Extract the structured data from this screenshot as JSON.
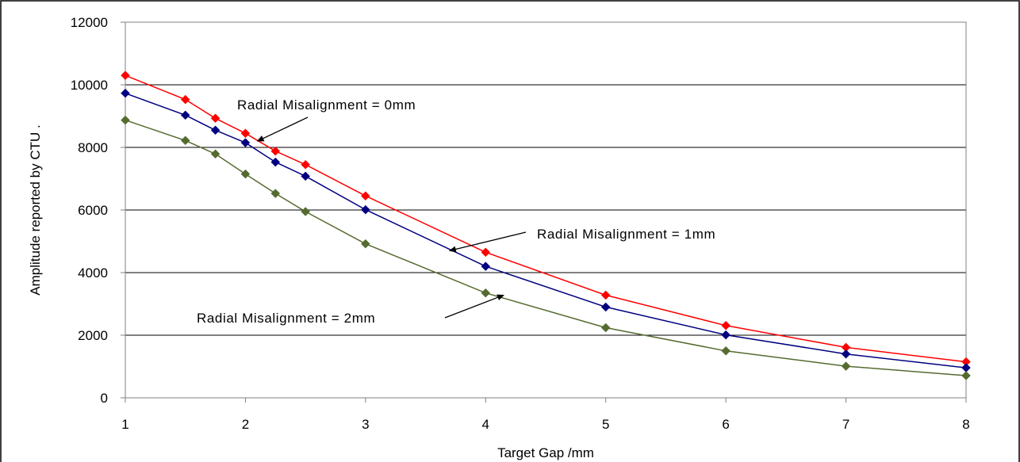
{
  "chart_data": {
    "type": "line",
    "title": "",
    "xlabel": "Target Gap /mm",
    "ylabel": "Amplitude reported by CTU .",
    "xlim": [
      1,
      8
    ],
    "ylim": [
      0,
      12000
    ],
    "x_ticks": [
      "1",
      "2",
      "3",
      "4",
      "5",
      "6",
      "7",
      "8"
    ],
    "y_ticks": [
      "0",
      "2000",
      "4000",
      "6000",
      "8000",
      "10000",
      "12000"
    ],
    "grid": "horizontal",
    "legend": "none",
    "series": [
      {
        "color": "#ff0000",
        "points": [
          [
            1,
            10300
          ],
          [
            1.5,
            9530
          ],
          [
            1.75,
            8930
          ],
          [
            2,
            8450
          ],
          [
            2.25,
            7880
          ],
          [
            2.5,
            7450
          ],
          [
            3,
            6450
          ],
          [
            4,
            4650
          ],
          [
            5,
            3280
          ],
          [
            6,
            2310
          ],
          [
            7,
            1610
          ],
          [
            8,
            1150
          ]
        ]
      },
      {
        "color": "#000080",
        "points": [
          [
            1,
            9730
          ],
          [
            1.5,
            9030
          ],
          [
            1.75,
            8550
          ],
          [
            2,
            8150
          ],
          [
            2.25,
            7530
          ],
          [
            2.5,
            7080
          ],
          [
            3,
            6010
          ],
          [
            4,
            4200
          ],
          [
            5,
            2900
          ],
          [
            6,
            2010
          ],
          [
            7,
            1400
          ],
          [
            8,
            960
          ]
        ]
      },
      {
        "color": "#556b2f",
        "points": [
          [
            1,
            8870
          ],
          [
            1.5,
            8220
          ],
          [
            1.75,
            7790
          ],
          [
            2,
            7150
          ],
          [
            2.25,
            6530
          ],
          [
            2.5,
            5950
          ],
          [
            3,
            4920
          ],
          [
            4,
            3350
          ],
          [
            5,
            2240
          ],
          [
            6,
            1500
          ],
          [
            7,
            1010
          ],
          [
            8,
            710
          ]
        ]
      }
    ],
    "annotations": [
      {
        "text": "Radial Misalignment = 0mm",
        "target": [
          2.1,
          8200
        ]
      },
      {
        "text": "Radial Misalignment = 1mm",
        "target": [
          3.7,
          4700
        ]
      },
      {
        "text": "Radial Misalignment = 2mm",
        "target": [
          4.15,
          3280
        ]
      }
    ]
  }
}
